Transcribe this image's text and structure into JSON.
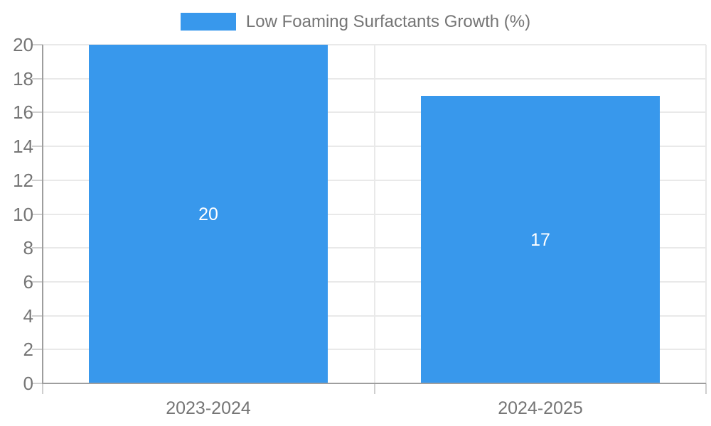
{
  "chart_data": {
    "type": "bar",
    "title": "",
    "legend": {
      "label": "Low Foaming Surfactants Growth (%)",
      "position": "top"
    },
    "categories": [
      "2023-2024",
      "2024-2025"
    ],
    "values": [
      20,
      17
    ],
    "xlabel": "",
    "ylabel": "",
    "ylim": [
      0,
      20
    ],
    "ytick_step": 2,
    "ytick_labels": [
      "0",
      "2",
      "4",
      "6",
      "8",
      "10",
      "12",
      "14",
      "16",
      "18",
      "20"
    ],
    "grid": true,
    "legend_position": "top-center",
    "bar_value_labels_shown": true,
    "colors": {
      "bar": "#3898ec",
      "grid": "#e9e9e9",
      "axis": "#9e9e9e",
      "tick": "#cfcfcf",
      "text": "#757575",
      "value_label": "#ffffff",
      "background": "#ffffff"
    }
  }
}
